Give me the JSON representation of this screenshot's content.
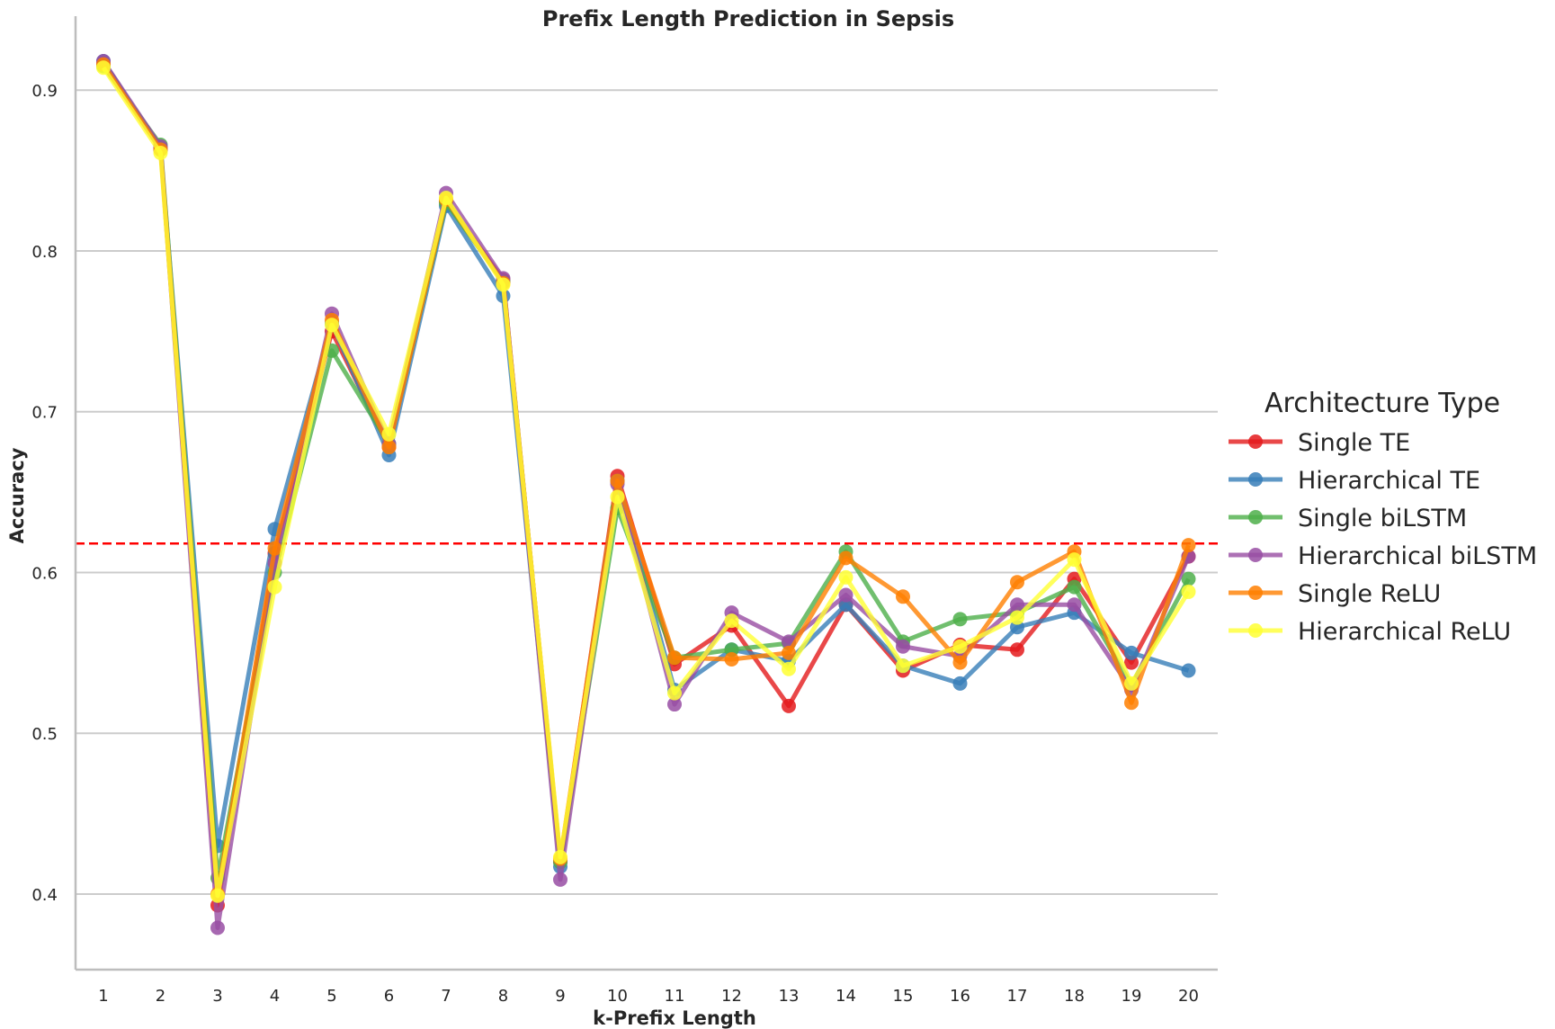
{
  "chart_data": {
    "type": "line",
    "title": "Prefix Length Prediction in Sepsis",
    "xlabel": "k-Prefix Length",
    "ylabel": "Accuracy",
    "x": [
      1,
      2,
      3,
      4,
      5,
      6,
      7,
      8,
      9,
      10,
      11,
      12,
      13,
      14,
      15,
      16,
      17,
      18,
      19,
      20
    ],
    "x_tick_labels": [
      "1",
      "2",
      "3",
      "4",
      "5",
      "6",
      "7",
      "8",
      "9",
      "10",
      "11",
      "12",
      "13",
      "14",
      "15",
      "16",
      "17",
      "18",
      "19",
      "20"
    ],
    "ylim": [
      0.353,
      0.946
    ],
    "y_ticks": [
      0.4,
      0.5,
      0.6,
      0.7,
      0.8,
      0.9
    ],
    "y_tick_labels": [
      "0.4",
      "0.5",
      "0.6",
      "0.7",
      "0.8",
      "0.9"
    ],
    "grid": "horizontal",
    "reference_line": {
      "y": 0.618,
      "color": "#ff0000",
      "style": "dashed"
    },
    "legend": {
      "title": "Architecture Type",
      "placement": "right"
    },
    "series": [
      {
        "name": "Single TE",
        "color": "#e41a1c",
        "values": [
          0.917,
          0.864,
          0.393,
          0.612,
          0.75,
          0.678,
          0.831,
          0.782,
          0.42,
          0.66,
          0.543,
          0.567,
          0.517,
          0.58,
          0.539,
          0.555,
          0.552,
          0.596,
          0.544,
          0.61
        ]
      },
      {
        "name": "Hierarchical TE",
        "color": "#377eb8",
        "values": [
          0.918,
          0.863,
          0.43,
          0.627,
          0.755,
          0.673,
          0.828,
          0.772,
          0.417,
          0.657,
          0.527,
          0.552,
          0.545,
          0.58,
          0.542,
          0.531,
          0.566,
          0.575,
          0.55,
          0.539
        ]
      },
      {
        "name": "Single biLSTM",
        "color": "#4daf4a",
        "values": [
          0.915,
          0.866,
          0.41,
          0.6,
          0.738,
          0.68,
          0.83,
          0.781,
          0.42,
          0.64,
          0.547,
          0.552,
          0.556,
          0.613,
          0.557,
          0.571,
          0.575,
          0.591,
          0.53,
          0.596
        ]
      },
      {
        "name": "Hierarchical biLSTM",
        "color": "#984ea3",
        "values": [
          0.918,
          0.865,
          0.379,
          0.606,
          0.761,
          0.68,
          0.836,
          0.783,
          0.409,
          0.655,
          0.518,
          0.575,
          0.557,
          0.586,
          0.554,
          0.548,
          0.58,
          0.58,
          0.527,
          0.61
        ]
      },
      {
        "name": "Single ReLU",
        "color": "#ff7f00",
        "values": [
          0.916,
          0.863,
          0.4,
          0.615,
          0.757,
          0.678,
          0.832,
          0.78,
          0.422,
          0.657,
          0.547,
          0.546,
          0.55,
          0.609,
          0.585,
          0.544,
          0.594,
          0.613,
          0.519,
          0.617
        ]
      },
      {
        "name": "Hierarchical ReLU",
        "color": "#ffff33",
        "values": [
          0.914,
          0.861,
          0.399,
          0.591,
          0.754,
          0.686,
          0.833,
          0.779,
          0.423,
          0.647,
          0.525,
          0.57,
          0.54,
          0.597,
          0.542,
          0.554,
          0.572,
          0.608,
          0.531,
          0.588
        ]
      }
    ]
  }
}
